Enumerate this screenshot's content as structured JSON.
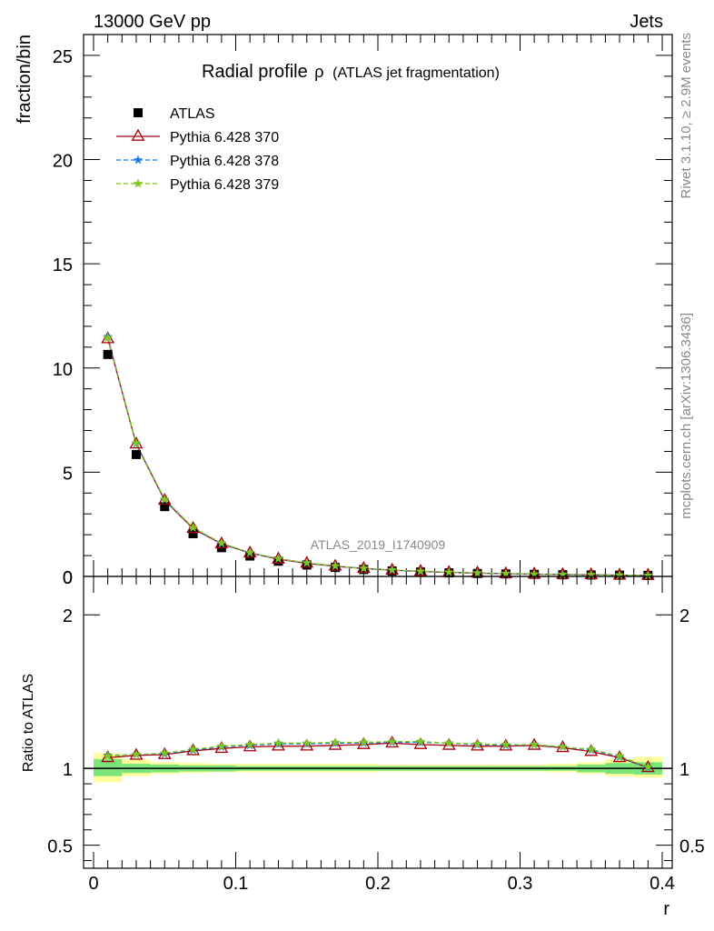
{
  "header": {
    "left": "13000 GeV pp",
    "right": "Jets"
  },
  "side_text": {
    "rivet": "Rivet 3.1.10, ≥ 2.9M events",
    "mcplots": "mcplots.cern.ch [arXiv:1306.3436]"
  },
  "watermark": "ATLAS_2019_I1740909",
  "chart_data": [
    {
      "type": "line",
      "title": "Radial profile",
      "title_symbol": "ρ",
      "subtitle": "(ATLAS jet fragmentation)",
      "xlabel": "",
      "ylabel": "fraction/bin",
      "xlim": [
        0,
        0.4
      ],
      "ylim": [
        0,
        26
      ],
      "y_ticks": [
        0,
        5,
        10,
        15,
        20,
        25
      ],
      "legend_position": "top-left",
      "x": [
        0.01,
        0.03,
        0.05,
        0.07,
        0.09,
        0.11,
        0.13,
        0.15,
        0.17,
        0.19,
        0.21,
        0.23,
        0.25,
        0.27,
        0.29,
        0.31,
        0.33,
        0.35,
        0.37,
        0.39
      ],
      "series": [
        {
          "name": "ATLAS",
          "color": "#000000",
          "marker": "square",
          "values": [
            10.65,
            5.85,
            3.35,
            2.05,
            1.38,
            0.98,
            0.73,
            0.55,
            0.43,
            0.33,
            0.26,
            0.21,
            0.17,
            0.14,
            0.12,
            0.1,
            0.08,
            0.07,
            0.06,
            0.05
          ]
        },
        {
          "name": "Pythia 6.428 370",
          "color": "#a4000f",
          "marker": "open-triangle",
          "line": "solid",
          "values": [
            11.4,
            6.35,
            3.65,
            2.3,
            1.56,
            1.12,
            0.83,
            0.63,
            0.49,
            0.38,
            0.3,
            0.24,
            0.19,
            0.16,
            0.13,
            0.11,
            0.09,
            0.08,
            0.06,
            0.05
          ]
        },
        {
          "name": "Pythia 6.428 378",
          "color": "#1f77e4",
          "marker": "star",
          "line": "dashed",
          "values": [
            11.5,
            6.38,
            3.68,
            2.33,
            1.58,
            1.13,
            0.85,
            0.64,
            0.5,
            0.38,
            0.3,
            0.24,
            0.2,
            0.16,
            0.13,
            0.11,
            0.09,
            0.08,
            0.06,
            0.05
          ]
        },
        {
          "name": "Pythia 6.428 379",
          "color": "#7dc81e",
          "marker": "star",
          "line": "dashed",
          "values": [
            11.45,
            6.4,
            3.7,
            2.34,
            1.6,
            1.14,
            0.85,
            0.65,
            0.5,
            0.39,
            0.31,
            0.25,
            0.2,
            0.16,
            0.14,
            0.11,
            0.09,
            0.08,
            0.06,
            0.05
          ]
        }
      ]
    },
    {
      "type": "line",
      "title": "",
      "xlabel": "r",
      "ylabel": "Ratio to ATLAS",
      "xlim": [
        0,
        0.4
      ],
      "ylim": [
        0.35,
        2.25
      ],
      "y_ticks": [
        0.5,
        1,
        2
      ],
      "x_ticks": [
        0,
        0.1,
        0.2,
        0.3,
        0.4
      ],
      "x_tick_labels": [
        "0",
        "0.1",
        "0.2",
        "0.3",
        "0.4"
      ],
      "reference_line": 1,
      "bands": {
        "stat_color": "#7be57b",
        "total_color": "#fffd99",
        "bin_edges": [
          0,
          0.02,
          0.04,
          0.06,
          0.08,
          0.1,
          0.12,
          0.14,
          0.16,
          0.18,
          0.2,
          0.22,
          0.24,
          0.26,
          0.28,
          0.3,
          0.32,
          0.34,
          0.36,
          0.38,
          0.4
        ],
        "stat": [
          [
            0.95,
            1.06
          ],
          [
            0.97,
            1.03
          ],
          [
            0.975,
            1.025
          ],
          [
            0.98,
            1.02
          ],
          [
            0.98,
            1.02
          ],
          [
            0.985,
            1.015
          ],
          [
            0.985,
            1.015
          ],
          [
            0.985,
            1.015
          ],
          [
            0.985,
            1.015
          ],
          [
            0.985,
            1.015
          ],
          [
            0.985,
            1.015
          ],
          [
            0.985,
            1.015
          ],
          [
            0.985,
            1.015
          ],
          [
            0.985,
            1.015
          ],
          [
            0.985,
            1.015
          ],
          [
            0.985,
            1.015
          ],
          [
            0.985,
            1.015
          ],
          [
            0.975,
            1.025
          ],
          [
            0.965,
            1.035
          ],
          [
            0.96,
            1.04
          ]
        ],
        "total": [
          [
            0.91,
            1.1
          ],
          [
            0.95,
            1.06
          ],
          [
            0.965,
            1.04
          ],
          [
            0.97,
            1.035
          ],
          [
            0.975,
            1.03
          ],
          [
            0.975,
            1.03
          ],
          [
            0.975,
            1.03
          ],
          [
            0.975,
            1.03
          ],
          [
            0.975,
            1.03
          ],
          [
            0.975,
            1.03
          ],
          [
            0.98,
            1.025
          ],
          [
            0.98,
            1.025
          ],
          [
            0.98,
            1.025
          ],
          [
            0.98,
            1.025
          ],
          [
            0.98,
            1.025
          ],
          [
            0.98,
            1.025
          ],
          [
            0.975,
            1.03
          ],
          [
            0.965,
            1.04
          ],
          [
            0.95,
            1.06
          ],
          [
            0.94,
            1.075
          ]
        ]
      },
      "series": [
        {
          "name": "Pythia 6.428 370",
          "color": "#a4000f",
          "marker": "open-triangle",
          "line": "solid",
          "values": [
            1.07,
            1.085,
            1.09,
            1.115,
            1.13,
            1.14,
            1.145,
            1.145,
            1.15,
            1.155,
            1.165,
            1.155,
            1.15,
            1.145,
            1.145,
            1.15,
            1.135,
            1.11,
            1.07,
            1.005
          ]
        },
        {
          "name": "Pythia 6.428 378",
          "color": "#1f77e4",
          "marker": "star",
          "line": "dashed",
          "values": [
            1.085,
            1.09,
            1.095,
            1.12,
            1.14,
            1.15,
            1.16,
            1.16,
            1.165,
            1.165,
            1.17,
            1.17,
            1.165,
            1.155,
            1.15,
            1.155,
            1.14,
            1.12,
            1.075,
            1.005
          ]
        },
        {
          "name": "Pythia 6.428 379",
          "color": "#7dc81e",
          "marker": "star",
          "line": "dashed",
          "values": [
            1.08,
            1.09,
            1.1,
            1.125,
            1.145,
            1.155,
            1.165,
            1.165,
            1.17,
            1.17,
            1.175,
            1.175,
            1.165,
            1.16,
            1.155,
            1.155,
            1.14,
            1.125,
            1.08,
            1.01
          ]
        }
      ]
    }
  ]
}
